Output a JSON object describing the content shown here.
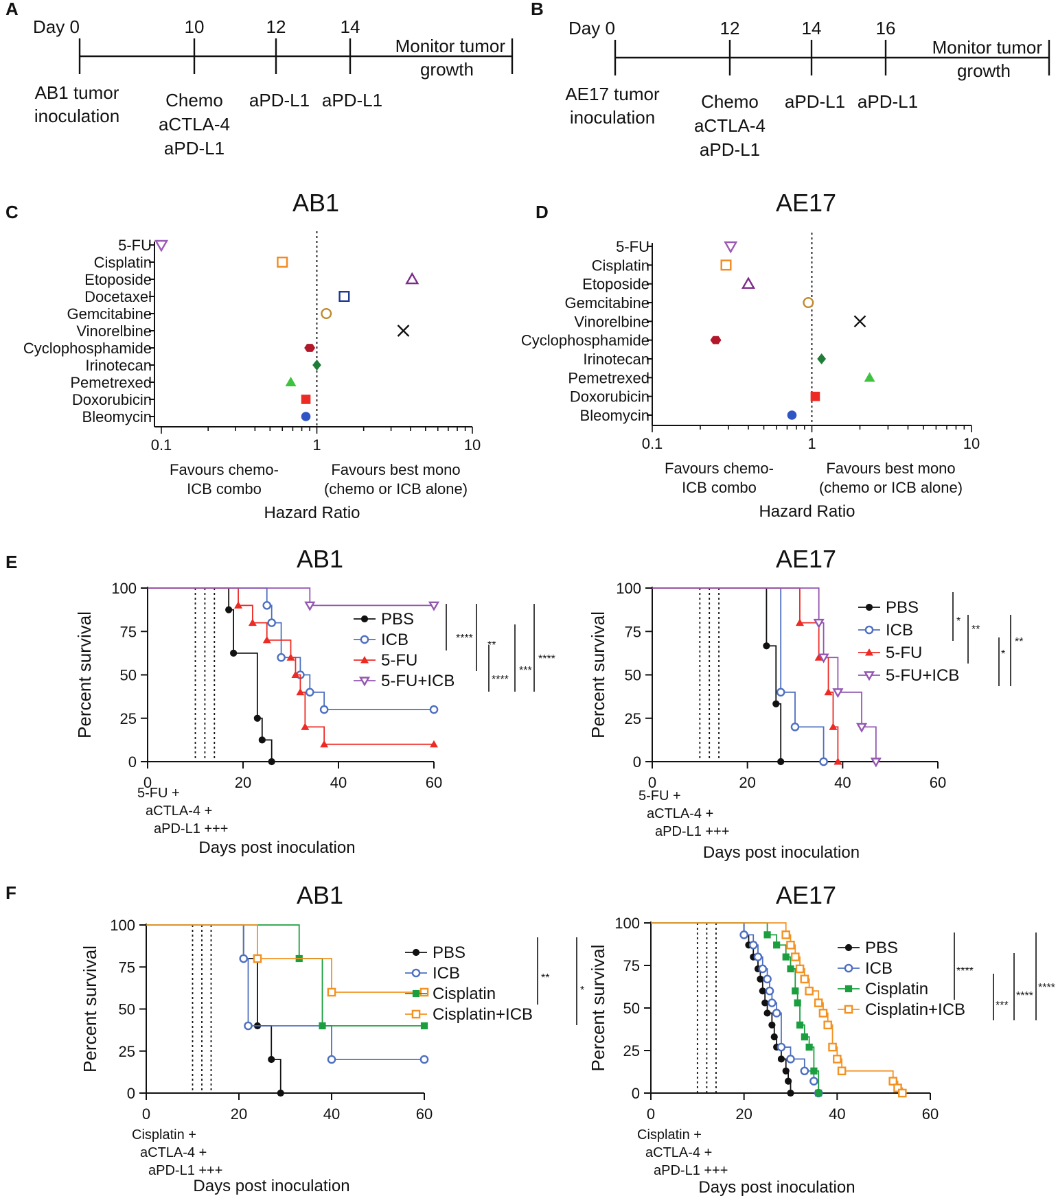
{
  "colors": {
    "black": "#111111",
    "chemo_green": "#6cbf4a",
    "icb_blue": "#4d6fc0",
    "pdl1_blue": "#2b7ec0",
    "red": "#ee2a24",
    "purple": "#9356b0",
    "orange": "#f39221",
    "green": "#1b9e3e",
    "forest_marker_colors": {
      "5-FU": "#9b59b6",
      "Cisplatin": "#f28a1e",
      "Etoposide": "#7d2a8a",
      "Docetaxel": "#1f3a93",
      "Gemcitabine": "#c08a2e",
      "Vinorelbine": "#111111",
      "Cyclophosphamide": "#b3172a",
      "Irinotecan": "#1e7d36",
      "Pemetrexed": "#3fc33f",
      "Doxorubicin": "#ee2a24",
      "Bleomycin": "#2f55c4"
    }
  },
  "panels": {
    "A": {
      "letter": "A",
      "ticks": [
        {
          "label": "Day 0",
          "day": 0
        },
        {
          "label": "10",
          "day": 10
        },
        {
          "label": "12",
          "day": 12
        },
        {
          "label": "14",
          "day": 14
        }
      ],
      "monitor": [
        "Monitor tumor",
        "growth"
      ],
      "inoculation": [
        "AB1 tumor",
        "inoculation"
      ],
      "treat_first": [
        {
          "text": "Chemo",
          "color": "chemo_green"
        },
        {
          "text": "aCTLA-4",
          "color": "icb_blue"
        },
        {
          "text": "aPD-L1",
          "color": "icb_blue"
        }
      ],
      "treat_2": "aPD-L1",
      "treat_3": "aPD-L1"
    },
    "B": {
      "letter": "B",
      "ticks": [
        {
          "label": "Day 0",
          "day": 0
        },
        {
          "label": "12",
          "day": 12
        },
        {
          "label": "14",
          "day": 14
        },
        {
          "label": "16",
          "day": 16
        }
      ],
      "monitor": [
        "Monitor tumor",
        "growth"
      ],
      "inoculation": [
        "AE17 tumor",
        "inoculation"
      ],
      "treat_first": [
        {
          "text": "Chemo",
          "color": "chemo_green"
        },
        {
          "text": "aCTLA-4",
          "color": "icb_blue"
        },
        {
          "text": "aPD-L1",
          "color": "icb_blue"
        }
      ],
      "treat_2": "aPD-L1",
      "treat_3": "aPD-L1"
    }
  },
  "chart_data": [
    {
      "panel": "C",
      "type": "scatter",
      "title": "AB1",
      "xlabel": "Hazard Ratio",
      "xscale": "log",
      "xlim": [
        0.1,
        10
      ],
      "xticks": [
        "0.1",
        "1",
        "10"
      ],
      "reference_line": 1,
      "left_note": [
        "Favours chemo-",
        "ICB combo"
      ],
      "right_note": [
        "Favours best mono",
        "(chemo or ICB alone)"
      ],
      "categories": [
        "5-FU",
        "Cisplatin",
        "Etoposide",
        "Docetaxel",
        "Gemcitabine",
        "Vinorelbine",
        "Cyclophosphamide",
        "Irinotecan",
        "Pemetrexed",
        "Doxorubicin",
        "Bleomycin"
      ],
      "category_labels": [
        "5-FU",
        "Cisplatin",
        "Etoposide",
        "Docetaxel",
        "Gemcitabine",
        "Vinorelbine",
        "Cyclophosphamide",
        "Irinotecan",
        "Pemetrexed",
        "Doxorubicin",
        "Bleomycin"
      ],
      "values": [
        0.1,
        0.6,
        4.1,
        1.5,
        1.15,
        3.6,
        0.9,
        1.0,
        0.68,
        0.85,
        0.85
      ],
      "markers": [
        "tri_down_open",
        "square_open",
        "tri_up_open",
        "square_open",
        "circle_open",
        "x",
        "hexagon",
        "diamond",
        "tri_up",
        "square",
        "circle"
      ]
    },
    {
      "panel": "D",
      "type": "scatter",
      "title": "AE17",
      "xlabel": "Hazard Ratio",
      "xscale": "log",
      "xlim": [
        0.1,
        10
      ],
      "xticks": [
        "0.1",
        "1",
        "10"
      ],
      "reference_line": 1,
      "left_note": [
        "Favours chemo-",
        "ICB combo"
      ],
      "right_note": [
        "Favours best mono",
        "(chemo or ICB alone)"
      ],
      "categories": [
        "5-FU",
        "Cisplatin",
        "Etoposide",
        "Gemcitabine",
        "Vinorelbine",
        "Cyclophosphamide",
        "Irinotecan",
        "Pemetrexed",
        "Doxorubicin",
        "Bleomycin"
      ],
      "category_labels": [
        "5-FU",
        "Cisplatin",
        "Etoposide",
        "Gemcitabine",
        "Vinorelbine",
        "Cyclophosphamide",
        "Irinotecan",
        "Pemetrexed",
        "Doxorubicin",
        "Bleomycin"
      ],
      "values": [
        0.31,
        0.29,
        0.4,
        0.95,
        2.0,
        0.25,
        1.15,
        2.3,
        1.05,
        0.75
      ],
      "markers": [
        "tri_down_open",
        "square_open",
        "tri_up_open",
        "circle_open",
        "x",
        "hexagon",
        "diamond",
        "tri_up",
        "square",
        "circle"
      ]
    },
    {
      "panel": "E-left",
      "type": "line",
      "letter": "E",
      "title": "AB1",
      "xlabel": "Days post inoculation",
      "ylabel": "Percent survival",
      "xlim": [
        0,
        60
      ],
      "ylim": [
        0,
        100
      ],
      "xticks": [
        0,
        20,
        40,
        60
      ],
      "yticks": [
        0,
        25,
        50,
        75,
        100
      ],
      "treatment_days": [
        10,
        12,
        14
      ],
      "treatment_note": [
        "5-FU +",
        "aCTLA-4 +",
        "aPD-L1 +++"
      ],
      "series": [
        {
          "name": "PBS",
          "color": "black",
          "marker": "circle",
          "steps": [
            [
              0,
              100
            ],
            [
              17,
              87.5
            ],
            [
              18,
              62.5
            ],
            [
              23,
              25
            ],
            [
              24,
              12.5
            ],
            [
              26,
              0
            ]
          ],
          "end": 26,
          "censored": []
        },
        {
          "name": "ICB",
          "color": "icb_blue",
          "marker": "circle_open",
          "steps": [
            [
              0,
              100
            ],
            [
              25,
              90
            ],
            [
              26,
              80
            ],
            [
              28,
              60
            ],
            [
              32,
              50
            ],
            [
              34,
              40
            ],
            [
              37,
              30
            ]
          ],
          "end": 60,
          "censored": [
            60
          ]
        },
        {
          "name": "5-FU",
          "color": "red",
          "marker": "tri_up",
          "steps": [
            [
              0,
              100
            ],
            [
              19,
              90
            ],
            [
              22,
              80
            ],
            [
              25,
              70
            ],
            [
              30,
              60
            ],
            [
              31,
              50
            ],
            [
              32,
              40
            ],
            [
              33,
              20
            ],
            [
              37,
              10
            ]
          ],
          "end": 60,
          "censored": [
            60
          ]
        },
        {
          "name": "5-FU+ICB",
          "color": "purple",
          "marker": "tri_down_open",
          "steps": [
            [
              0,
              100
            ],
            [
              34,
              90
            ]
          ],
          "end": 60,
          "censored": [
            60
          ]
        }
      ],
      "significance": [
        "****",
        "**",
        "****",
        "***",
        "****"
      ]
    },
    {
      "panel": "E-right",
      "type": "line",
      "title": "AE17",
      "xlabel": "Days post inoculation",
      "ylabel": "Percent survival",
      "xlim": [
        0,
        60
      ],
      "ylim": [
        0,
        100
      ],
      "xticks": [
        0,
        20,
        40,
        60
      ],
      "yticks": [
        0,
        25,
        50,
        75,
        100
      ],
      "treatment_days": [
        10,
        12,
        14
      ],
      "treatment_note": [
        "5-FU +",
        "aCTLA-4 +",
        "aPD-L1 +++"
      ],
      "series": [
        {
          "name": "PBS",
          "color": "black",
          "marker": "circle",
          "steps": [
            [
              0,
              100
            ],
            [
              24,
              66.7
            ],
            [
              26,
              33.3
            ],
            [
              27,
              0
            ]
          ],
          "end": 27,
          "censored": []
        },
        {
          "name": "ICB",
          "color": "icb_blue",
          "marker": "circle_open",
          "steps": [
            [
              0,
              100
            ],
            [
              27,
              40
            ],
            [
              30,
              20
            ],
            [
              36,
              0
            ]
          ],
          "end": 36,
          "censored": []
        },
        {
          "name": "5-FU",
          "color": "red",
          "marker": "tri_up",
          "steps": [
            [
              0,
              100
            ],
            [
              31,
              80
            ],
            [
              35,
              60
            ],
            [
              37,
              40
            ],
            [
              38,
              20
            ],
            [
              39,
              0
            ]
          ],
          "end": 39,
          "censored": []
        },
        {
          "name": "5-FU+ICB",
          "color": "purple",
          "marker": "tri_down_open",
          "steps": [
            [
              0,
              100
            ],
            [
              35,
              80
            ],
            [
              36,
              60
            ],
            [
              39,
              40
            ],
            [
              44,
              20
            ],
            [
              47,
              0
            ]
          ],
          "end": 47,
          "censored": []
        }
      ],
      "significance": [
        "*",
        "**",
        "*",
        "**"
      ]
    },
    {
      "panel": "F-left",
      "type": "line",
      "letter": "F",
      "title": "AB1",
      "xlabel": "Days post inoculation",
      "ylabel": "Percent survival",
      "xlim": [
        0,
        60
      ],
      "ylim": [
        0,
        100
      ],
      "xticks": [
        0,
        20,
        40,
        60
      ],
      "yticks": [
        0,
        25,
        50,
        75,
        100
      ],
      "treatment_days": [
        10,
        12,
        14
      ],
      "treatment_note": [
        "Cisplatin +",
        "aCTLA-4 +",
        "aPD-L1 +++"
      ],
      "series": [
        {
          "name": "PBS",
          "color": "black",
          "marker": "circle",
          "steps": [
            [
              0,
              100
            ],
            [
              21,
              80
            ],
            [
              24,
              40
            ],
            [
              27,
              20
            ],
            [
              29,
              0
            ]
          ],
          "end": 29,
          "censored": []
        },
        {
          "name": "ICB",
          "color": "icb_blue",
          "marker": "circle_open",
          "steps": [
            [
              0,
              100
            ],
            [
              21,
              80
            ],
            [
              22,
              40
            ],
            [
              40,
              20
            ]
          ],
          "end": 60,
          "censored": [
            60
          ]
        },
        {
          "name": "Cisplatin",
          "color": "green",
          "marker": "square",
          "steps": [
            [
              0,
              100
            ],
            [
              33,
              80
            ],
            [
              38,
              40
            ]
          ],
          "end": 60,
          "censored": [
            60
          ]
        },
        {
          "name": "Cisplatin+ICB",
          "color": "orange",
          "marker": "square_open",
          "steps": [
            [
              0,
              100
            ],
            [
              24,
              80
            ],
            [
              40,
              60
            ]
          ],
          "end": 60,
          "censored": [
            60
          ]
        }
      ],
      "significance": [
        "**",
        "*"
      ]
    },
    {
      "panel": "F-right",
      "type": "line",
      "title": "AE17",
      "xlabel": "Days post inoculation",
      "ylabel": "Percent survival",
      "xlim": [
        0,
        60
      ],
      "ylim": [
        0,
        100
      ],
      "xticks": [
        0,
        20,
        40,
        60
      ],
      "yticks": [
        0,
        25,
        50,
        75,
        100
      ],
      "treatment_days": [
        10,
        12,
        14
      ],
      "treatment_note": [
        "Cisplatin +",
        "aCTLA-4 +",
        "aPD-L1 +++"
      ],
      "series": [
        {
          "name": "PBS",
          "color": "black",
          "marker": "circle",
          "steps": [
            [
              0,
              100
            ],
            [
              20,
              93
            ],
            [
              21,
              87
            ],
            [
              22,
              80
            ],
            [
              23,
              73
            ],
            [
              23.5,
              67
            ],
            [
              24,
              60
            ],
            [
              24.5,
              53
            ],
            [
              25,
              47
            ],
            [
              26,
              40
            ],
            [
              26.5,
              33
            ],
            [
              27,
              27
            ],
            [
              28,
              20
            ],
            [
              29,
              13
            ],
            [
              29.5,
              7
            ],
            [
              30,
              0
            ]
          ],
          "end": 30,
          "censored": []
        },
        {
          "name": "ICB",
          "color": "icb_blue",
          "marker": "circle_open",
          "steps": [
            [
              0,
              100
            ],
            [
              20,
              93
            ],
            [
              22,
              87
            ],
            [
              23,
              80
            ],
            [
              24,
              73
            ],
            [
              25,
              67
            ],
            [
              25.5,
              60
            ],
            [
              26,
              53
            ],
            [
              27,
              47
            ],
            [
              28,
              27
            ],
            [
              30,
              20
            ],
            [
              33,
              13
            ],
            [
              35,
              7
            ],
            [
              36,
              0
            ]
          ],
          "end": 36,
          "censored": []
        },
        {
          "name": "Cisplatin",
          "color": "green",
          "marker": "square",
          "steps": [
            [
              0,
              100
            ],
            [
              25,
              93
            ],
            [
              27,
              87
            ],
            [
              29,
              80
            ],
            [
              30,
              73
            ],
            [
              31,
              60
            ],
            [
              31.5,
              53
            ],
            [
              32,
              40
            ],
            [
              33,
              33
            ],
            [
              34,
              27
            ],
            [
              35,
              13
            ],
            [
              36,
              0
            ]
          ],
          "end": 36,
          "censored": []
        },
        {
          "name": "Cisplatin+ICB",
          "color": "orange",
          "marker": "square_open",
          "steps": [
            [
              0,
              100
            ],
            [
              29,
              93
            ],
            [
              30,
              87
            ],
            [
              31,
              80
            ],
            [
              32,
              73
            ],
            [
              33,
              67
            ],
            [
              34,
              60
            ],
            [
              36,
              53
            ],
            [
              37,
              47
            ],
            [
              38,
              40
            ],
            [
              39,
              27
            ],
            [
              40,
              20
            ],
            [
              41,
              13
            ],
            [
              52,
              7
            ],
            [
              53,
              3
            ],
            [
              54,
              0
            ]
          ],
          "end": 54,
          "censored": []
        }
      ],
      "significance": [
        "****",
        "***",
        "****",
        "****"
      ]
    }
  ]
}
